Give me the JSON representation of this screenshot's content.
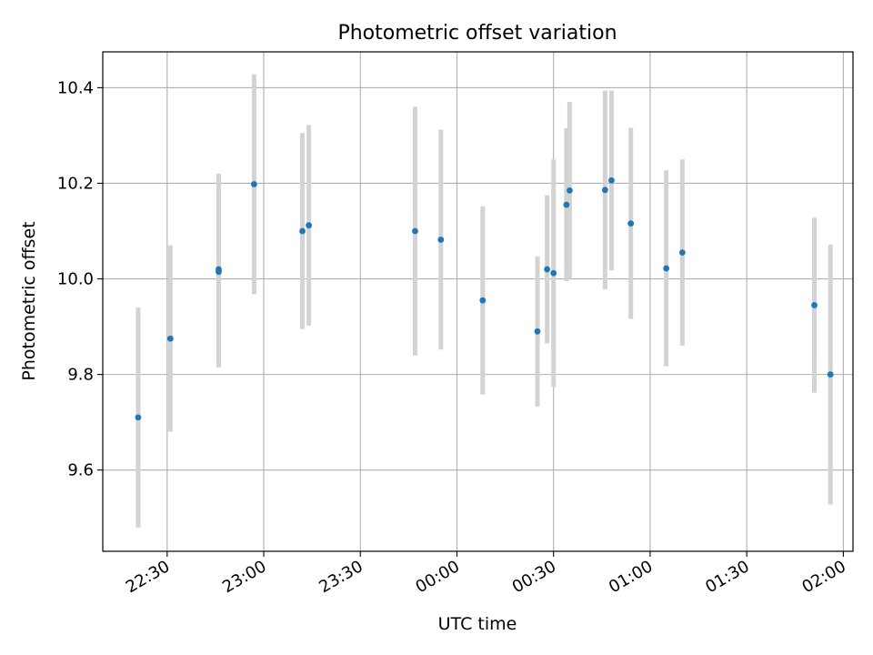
{
  "chart_data": {
    "type": "scatter",
    "title": "Photometric offset variation",
    "xlabel": "UTC time",
    "ylabel": "Photometric offset",
    "x_ticks": [
      "22:30",
      "23:00",
      "23:30",
      "00:00",
      "00:30",
      "01:00",
      "01:30",
      "02:00"
    ],
    "y_ticks": [
      "9.6",
      "9.8",
      "10.0",
      "10.2",
      "10.4"
    ],
    "xlim": [
      "22:10",
      "02:03"
    ],
    "ylim": [
      9.43,
      10.475
    ],
    "grid": true,
    "colors": {
      "point": "#1f77b4",
      "errorbar": "#d3d3d3",
      "grid": "#b0b0b0"
    },
    "series": [
      {
        "points": [
          {
            "x": "22:21",
            "y": 9.71,
            "err": 0.23
          },
          {
            "x": "22:31",
            "y": 9.875,
            "err": 0.195
          },
          {
            "x": "22:46",
            "y": 10.015,
            "err": 0.2
          },
          {
            "x": "22:46",
            "y": 10.02,
            "err": 0.2
          },
          {
            "x": "22:57",
            "y": 10.198,
            "err": 0.23
          },
          {
            "x": "23:12",
            "y": 10.1,
            "err": 0.205
          },
          {
            "x": "23:14",
            "y": 10.112,
            "err": 0.21
          },
          {
            "x": "23:47",
            "y": 10.1,
            "err": 0.26
          },
          {
            "x": "23:55",
            "y": 10.082,
            "err": 0.23
          },
          {
            "x": "00:08",
            "y": 9.955,
            "err": 0.197
          },
          {
            "x": "00:25",
            "y": 9.89,
            "err": 0.157
          },
          {
            "x": "00:28",
            "y": 10.02,
            "err": 0.155
          },
          {
            "x": "00:30",
            "y": 10.012,
            "err": 0.238
          },
          {
            "x": "00:34",
            "y": 10.155,
            "err": 0.16
          },
          {
            "x": "00:35",
            "y": 10.185,
            "err": 0.185
          },
          {
            "x": "00:46",
            "y": 10.186,
            "err": 0.208
          },
          {
            "x": "00:48",
            "y": 10.206,
            "err": 0.188
          },
          {
            "x": "00:54",
            "y": 10.116,
            "err": 0.2
          },
          {
            "x": "01:05",
            "y": 10.022,
            "err": 0.205
          },
          {
            "x": "01:10",
            "y": 10.055,
            "err": 0.195
          },
          {
            "x": "01:51",
            "y": 9.945,
            "err": 0.183
          },
          {
            "x": "01:56",
            "y": 9.8,
            "err": 0.272
          }
        ]
      }
    ]
  }
}
